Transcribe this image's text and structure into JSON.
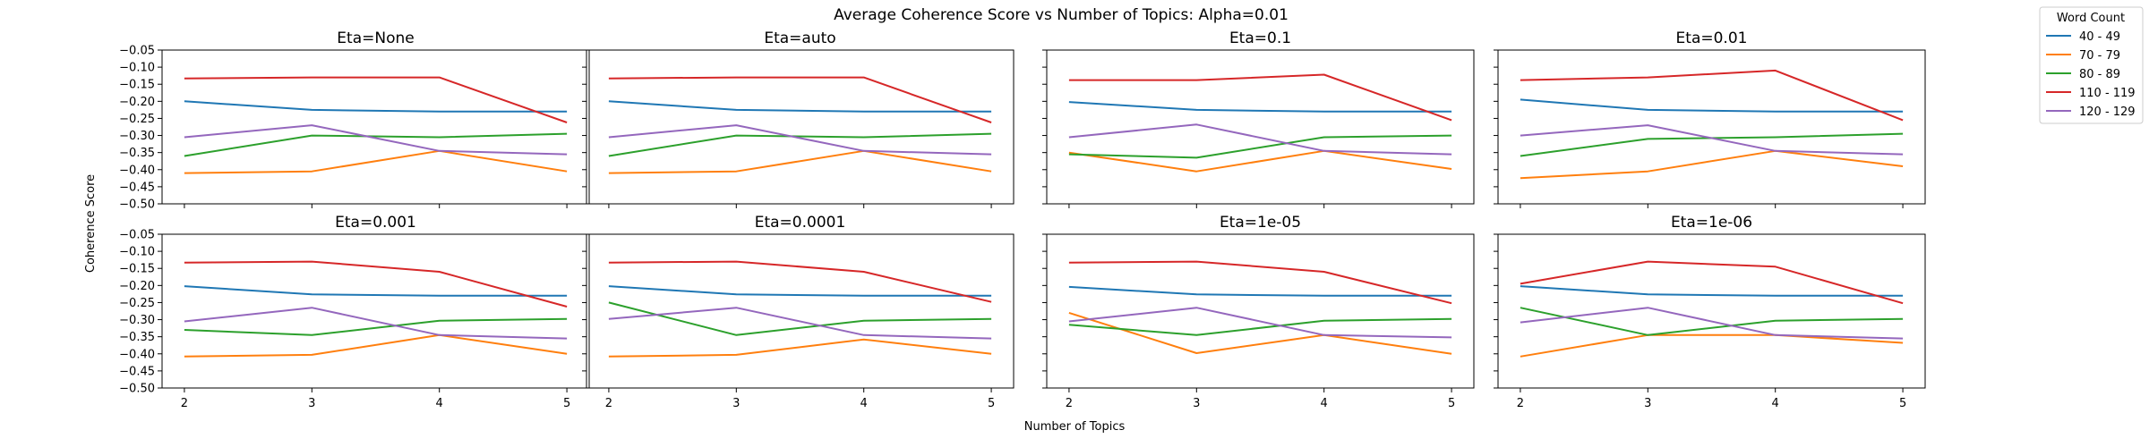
{
  "figure": {
    "title": "Average Coherence Score vs Number of Topics: Alpha=0.01",
    "xlabel": "Number of Topics",
    "ylabel": "Coherence Score"
  },
  "legend": {
    "title": "Word Count",
    "placement": "outside-top-right"
  },
  "chart_data": {
    "type": "line",
    "x": [
      2,
      3,
      4,
      5
    ],
    "xticks": [
      "2",
      "3",
      "4",
      "5"
    ],
    "ylim": [
      -0.5,
      -0.05
    ],
    "yticks": [
      "−0.05",
      "−0.10",
      "−0.15",
      "−0.20",
      "−0.25",
      "−0.30",
      "−0.35",
      "−0.40",
      "−0.45",
      "−0.50"
    ],
    "ytick_values": [
      -0.05,
      -0.1,
      -0.15,
      -0.2,
      -0.25,
      -0.3,
      -0.35,
      -0.4,
      -0.45,
      -0.5
    ],
    "grid": false,
    "series_styles": [
      {
        "name": "40 - 49",
        "color": "#1f77b4"
      },
      {
        "name": "70 - 79",
        "color": "#ff7f0e"
      },
      {
        "name": "80 - 89",
        "color": "#2ca02c"
      },
      {
        "name": "110 - 119",
        "color": "#d62728"
      },
      {
        "name": "120 - 129",
        "color": "#9467bd"
      }
    ],
    "panels": [
      {
        "title": "Eta=None",
        "series": [
          {
            "name": "40 - 49",
            "values": [
              -0.2,
              -0.225,
              -0.23,
              -0.23
            ]
          },
          {
            "name": "70 - 79",
            "values": [
              -0.41,
              -0.405,
              -0.345,
              -0.405
            ]
          },
          {
            "name": "80 - 89",
            "values": [
              -0.36,
              -0.3,
              -0.305,
              -0.295
            ]
          },
          {
            "name": "110 - 119",
            "values": [
              -0.133,
              -0.13,
              -0.13,
              -0.262
            ]
          },
          {
            "name": "120 - 129",
            "values": [
              -0.305,
              -0.27,
              -0.345,
              -0.355
            ]
          }
        ]
      },
      {
        "title": "Eta=auto",
        "series": [
          {
            "name": "40 - 49",
            "values": [
              -0.2,
              -0.225,
              -0.23,
              -0.23
            ]
          },
          {
            "name": "70 - 79",
            "values": [
              -0.41,
              -0.405,
              -0.345,
              -0.405
            ]
          },
          {
            "name": "80 - 89",
            "values": [
              -0.36,
              -0.3,
              -0.305,
              -0.295
            ]
          },
          {
            "name": "110 - 119",
            "values": [
              -0.133,
              -0.13,
              -0.13,
              -0.262
            ]
          },
          {
            "name": "120 - 129",
            "values": [
              -0.305,
              -0.27,
              -0.345,
              -0.355
            ]
          }
        ]
      },
      {
        "title": "Eta=0.1",
        "series": [
          {
            "name": "40 - 49",
            "values": [
              -0.202,
              -0.225,
              -0.23,
              -0.23
            ]
          },
          {
            "name": "70 - 79",
            "values": [
              -0.35,
              -0.405,
              -0.345,
              -0.398
            ]
          },
          {
            "name": "80 - 89",
            "values": [
              -0.355,
              -0.365,
              -0.305,
              -0.3
            ]
          },
          {
            "name": "110 - 119",
            "values": [
              -0.138,
              -0.138,
              -0.122,
              -0.255
            ]
          },
          {
            "name": "120 - 129",
            "values": [
              -0.305,
              -0.268,
              -0.345,
              -0.355
            ]
          }
        ]
      },
      {
        "title": "Eta=0.01",
        "series": [
          {
            "name": "40 - 49",
            "values": [
              -0.195,
              -0.225,
              -0.23,
              -0.23
            ]
          },
          {
            "name": "70 - 79",
            "values": [
              -0.425,
              -0.405,
              -0.345,
              -0.39
            ]
          },
          {
            "name": "80 - 89",
            "values": [
              -0.36,
              -0.31,
              -0.305,
              -0.295
            ]
          },
          {
            "name": "110 - 119",
            "values": [
              -0.138,
              -0.13,
              -0.11,
              -0.255
            ]
          },
          {
            "name": "120 - 129",
            "values": [
              -0.3,
              -0.27,
              -0.345,
              -0.355
            ]
          }
        ]
      },
      {
        "title": "Eta=0.001",
        "series": [
          {
            "name": "40 - 49",
            "values": [
              -0.202,
              -0.226,
              -0.23,
              -0.23
            ]
          },
          {
            "name": "70 - 79",
            "values": [
              -0.408,
              -0.403,
              -0.345,
              -0.4
            ]
          },
          {
            "name": "80 - 89",
            "values": [
              -0.33,
              -0.345,
              -0.303,
              -0.298
            ]
          },
          {
            "name": "110 - 119",
            "values": [
              -0.133,
              -0.13,
              -0.16,
              -0.262
            ]
          },
          {
            "name": "120 - 129",
            "values": [
              -0.305,
              -0.265,
              -0.345,
              -0.355
            ]
          }
        ]
      },
      {
        "title": "Eta=0.0001",
        "series": [
          {
            "name": "40 - 49",
            "values": [
              -0.202,
              -0.226,
              -0.23,
              -0.23
            ]
          },
          {
            "name": "70 - 79",
            "values": [
              -0.408,
              -0.403,
              -0.358,
              -0.4
            ]
          },
          {
            "name": "80 - 89",
            "values": [
              -0.25,
              -0.345,
              -0.303,
              -0.298
            ]
          },
          {
            "name": "110 - 119",
            "values": [
              -0.133,
              -0.13,
              -0.16,
              -0.248
            ]
          },
          {
            "name": "120 - 129",
            "values": [
              -0.298,
              -0.265,
              -0.345,
              -0.355
            ]
          }
        ]
      },
      {
        "title": "Eta=1e-05",
        "series": [
          {
            "name": "40 - 49",
            "values": [
              -0.204,
              -0.226,
              -0.23,
              -0.23
            ]
          },
          {
            "name": "70 - 79",
            "values": [
              -0.28,
              -0.398,
              -0.345,
              -0.4
            ]
          },
          {
            "name": "80 - 89",
            "values": [
              -0.315,
              -0.345,
              -0.303,
              -0.298
            ]
          },
          {
            "name": "110 - 119",
            "values": [
              -0.133,
              -0.13,
              -0.16,
              -0.252
            ]
          },
          {
            "name": "120 - 129",
            "values": [
              -0.305,
              -0.265,
              -0.345,
              -0.352
            ]
          }
        ]
      },
      {
        "title": "Eta=1e-06",
        "series": [
          {
            "name": "40 - 49",
            "values": [
              -0.202,
              -0.226,
              -0.23,
              -0.23
            ]
          },
          {
            "name": "70 - 79",
            "values": [
              -0.408,
              -0.345,
              -0.345,
              -0.368
            ]
          },
          {
            "name": "80 - 89",
            "values": [
              -0.265,
              -0.345,
              -0.303,
              -0.298
            ]
          },
          {
            "name": "110 - 119",
            "values": [
              -0.195,
              -0.13,
              -0.145,
              -0.252
            ]
          },
          {
            "name": "120 - 129",
            "values": [
              -0.308,
              -0.265,
              -0.345,
              -0.355
            ]
          }
        ]
      }
    ]
  }
}
